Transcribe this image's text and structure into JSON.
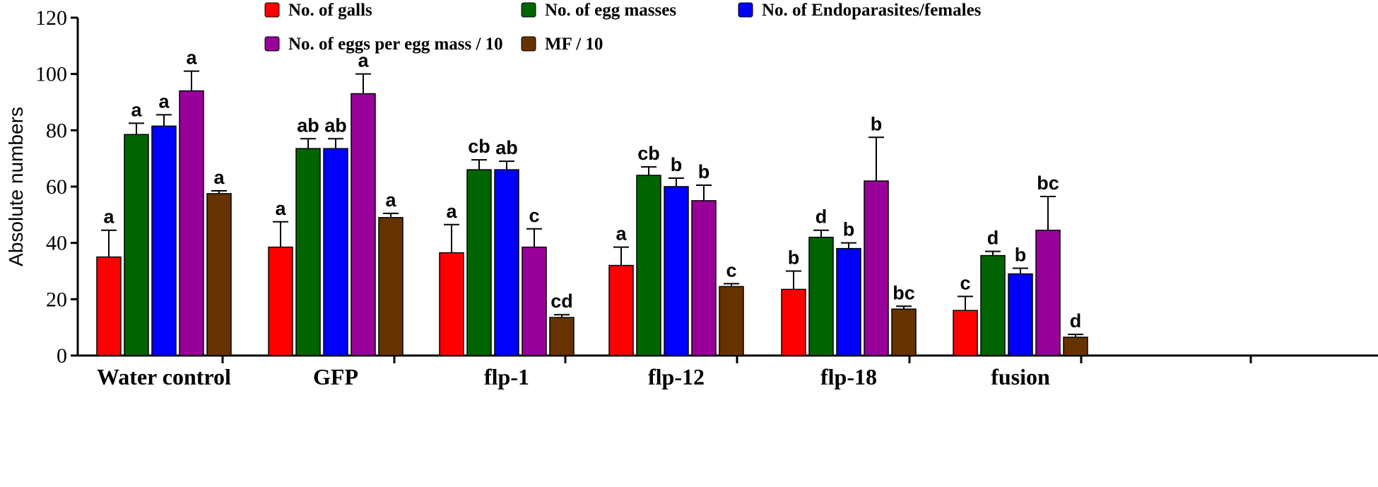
{
  "chart_data": {
    "type": "bar",
    "title": "",
    "xlabel": "",
    "ylabel": "Absolute numbers",
    "ylim": [
      0,
      120
    ],
    "yticks": [
      0,
      20,
      40,
      60,
      80,
      100,
      120
    ],
    "grid": false,
    "legend_position": "top-center",
    "categories": [
      "Water control",
      "GFP",
      "flp-1",
      "flp-12",
      "flp-18",
      "fusion"
    ],
    "series": [
      {
        "name": "No. of galls",
        "color": "#ff0000",
        "values": [
          35,
          38.5,
          36.5,
          32,
          23.5,
          16
        ],
        "errors": [
          9.5,
          9,
          10,
          6.5,
          6.5,
          5
        ],
        "labels": [
          "a",
          "a",
          "a",
          "a",
          "b",
          "c"
        ]
      },
      {
        "name": "No. of egg masses",
        "color": "#006400",
        "values": [
          78.5,
          73.5,
          66,
          64,
          42,
          35.5
        ],
        "errors": [
          4,
          3.5,
          3.5,
          3,
          2.5,
          1.5
        ],
        "labels": [
          "a",
          "ab",
          "cb",
          "cb",
          "d",
          "d"
        ]
      },
      {
        "name": "No. of Endoparasites/females",
        "color": "#0000ff",
        "values": [
          81.5,
          73.5,
          66,
          60,
          38,
          29
        ],
        "errors": [
          4,
          3.5,
          3,
          3,
          2,
          2
        ],
        "labels": [
          "a",
          "ab",
          "ab",
          "b",
          "b",
          "b"
        ]
      },
      {
        "name": "No. of eggs per egg mass / 10",
        "color": "#990099",
        "values": [
          94,
          93,
          38.5,
          55,
          62,
          44.5
        ],
        "errors": [
          7,
          7,
          6.5,
          5.5,
          15.5,
          12
        ],
        "labels": [
          "a",
          "a",
          "c",
          "b",
          "b",
          "bc"
        ]
      },
      {
        "name": "MF / 10",
        "color": "#663300",
        "values": [
          57.5,
          49,
          13.5,
          24.5,
          16.5,
          6.5
        ],
        "errors": [
          1,
          1.5,
          1,
          1,
          1,
          1
        ],
        "labels": [
          "a",
          "a",
          "cd",
          "c",
          "bc",
          "d"
        ]
      }
    ]
  }
}
